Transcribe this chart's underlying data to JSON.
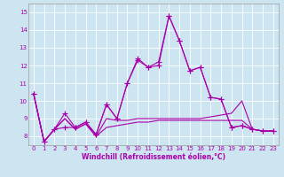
{
  "xlabel": "Windchill (Refroidissement éolien,°C)",
  "background_color": "#cce5f0",
  "grid_color": "#ffffff",
  "line_color": "#aa00aa",
  "xlim": [
    -0.5,
    23.5
  ],
  "ylim": [
    7.5,
    15.5
  ],
  "xticks": [
    0,
    1,
    2,
    3,
    4,
    5,
    6,
    7,
    8,
    9,
    10,
    11,
    12,
    13,
    14,
    15,
    16,
    17,
    18,
    19,
    20,
    21,
    22,
    23
  ],
  "yticks": [
    8,
    9,
    10,
    11,
    12,
    13,
    14,
    15
  ],
  "series": [
    [
      10.4,
      7.7,
      8.4,
      9.3,
      8.5,
      8.8,
      8.1,
      9.8,
      9.0,
      11.0,
      12.4,
      11.9,
      12.0,
      14.8,
      13.4,
      11.7,
      11.9,
      10.2,
      10.1,
      8.5,
      8.6,
      8.4,
      8.3,
      8.3
    ],
    [
      10.4,
      7.7,
      8.4,
      8.5,
      8.5,
      8.8,
      8.1,
      9.8,
      9.0,
      11.0,
      12.3,
      11.9,
      12.2,
      14.8,
      13.4,
      11.7,
      11.9,
      10.2,
      10.1,
      8.5,
      8.6,
      8.4,
      8.3,
      8.3
    ],
    [
      10.4,
      7.7,
      8.4,
      9.0,
      8.4,
      8.7,
      8.0,
      9.0,
      8.9,
      8.9,
      9.0,
      9.0,
      9.0,
      9.0,
      9.0,
      9.0,
      9.0,
      9.1,
      9.2,
      9.3,
      10.0,
      8.4,
      8.3,
      8.3
    ],
    [
      10.4,
      7.7,
      8.4,
      9.0,
      8.4,
      8.7,
      8.0,
      8.5,
      8.6,
      8.7,
      8.8,
      8.8,
      8.9,
      8.9,
      8.9,
      8.9,
      8.9,
      8.9,
      8.9,
      8.9,
      8.9,
      8.4,
      8.3,
      8.3
    ]
  ],
  "marker": "+",
  "markersize": 4,
  "linewidth": 0.8,
  "tick_fontsize": 5,
  "xlabel_fontsize": 5.5
}
